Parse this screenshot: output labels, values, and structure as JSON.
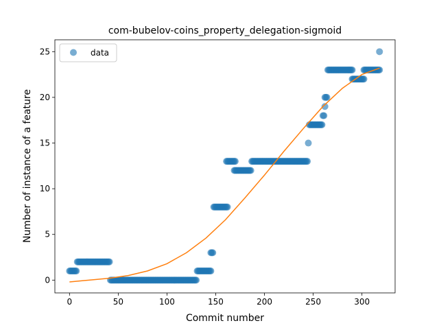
{
  "chart_data": {
    "type": "scatter",
    "title": "com-bubelov-coins_property_delegation-sigmoid",
    "xlabel": "Commit number",
    "ylabel": "Number of instance of a feature",
    "xlim": [
      -15,
      334
    ],
    "ylim": [
      -1.4,
      26.3
    ],
    "xticks": [
      0,
      50,
      100,
      150,
      200,
      250,
      300
    ],
    "yticks": [
      0,
      5,
      10,
      15,
      20,
      25
    ],
    "grid": false,
    "legend": {
      "position": "top-left",
      "entries": [
        "data"
      ]
    },
    "colors": {
      "data": "#1f77b4",
      "fit": "#ff7f0e"
    },
    "series": [
      {
        "name": "data",
        "kind": "scatter",
        "segments": [
          {
            "x_from": 0,
            "x_to": 7,
            "y": 1
          },
          {
            "x_from": 8,
            "x_to": 41,
            "y": 2
          },
          {
            "x_from": 42,
            "x_to": 130,
            "y": 0
          },
          {
            "x_from": 131,
            "x_to": 145,
            "y": 1
          },
          {
            "x_from": 145,
            "x_to": 147,
            "y": 3
          },
          {
            "x_from": 148,
            "x_to": 162,
            "y": 8
          },
          {
            "x_from": 161,
            "x_to": 170,
            "y": 13
          },
          {
            "x_from": 169,
            "x_to": 186,
            "y": 12
          },
          {
            "x_from": 187,
            "x_to": 244,
            "y": 13
          },
          {
            "x_from": 245,
            "x_to": 245,
            "y": 15
          },
          {
            "x_from": 246,
            "x_to": 259,
            "y": 17
          },
          {
            "x_from": 260,
            "x_to": 261,
            "y": 18
          },
          {
            "x_from": 262,
            "x_to": 262,
            "y": 19
          },
          {
            "x_from": 262,
            "x_to": 264,
            "y": 20
          },
          {
            "x_from": 265,
            "x_to": 290,
            "y": 23
          },
          {
            "x_from": 290,
            "x_to": 302,
            "y": 22
          },
          {
            "x_from": 302,
            "x_to": 318,
            "y": 23
          },
          {
            "x_from": 318,
            "x_to": 318,
            "y": 25
          }
        ]
      },
      {
        "kind": "line",
        "x": [
          0,
          20,
          40,
          60,
          80,
          100,
          120,
          140,
          160,
          180,
          200,
          220,
          240,
          260,
          280,
          300,
          318
        ],
        "y": [
          -0.2,
          0.0,
          0.2,
          0.5,
          1.0,
          1.8,
          3.0,
          4.6,
          6.6,
          9.0,
          11.5,
          14.1,
          16.6,
          19.0,
          21.0,
          22.5,
          23.2
        ]
      }
    ]
  }
}
